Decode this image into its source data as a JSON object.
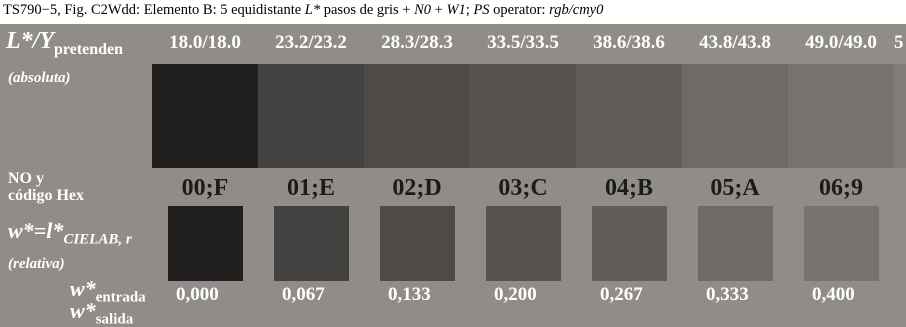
{
  "caption": {
    "prefix": "TS790−5, Fig. C2Wdd: Elemento B: 5 equidistante ",
    "lstar": "L*",
    "mid1": " pasos de gris + ",
    "n0": "N0",
    "plus": " + ",
    "w1": "W1",
    "sep": "; ",
    "ps": "PS",
    "operator": " operator: ",
    "rgb": "rgb/cmy0"
  },
  "labels": {
    "ly_main": "L*/Y",
    "ly_sub": "pretenden",
    "absoluta": "(absoluta)",
    "no_y": "NO y",
    "codigo_hex": "código Hex",
    "w_l_main": "w*=l*",
    "w_l_sub": "CIELAB, r",
    "relativa": "(relativa)",
    "w_entrada_main": "w*",
    "w_entrada_sub": "entrada",
    "w_salida_main": "w*",
    "w_salida_sub": "salida"
  },
  "headers": [
    "18.0/18.0",
    "23.2/23.2",
    "28.3/28.3",
    "33.5/33.5",
    "38.6/38.6",
    "43.8/43.8",
    "49.0/49.0",
    "5"
  ],
  "codes": [
    "00;F",
    "01;E",
    "02;D",
    "03;C",
    "04;B",
    "05;A",
    "06;9"
  ],
  "values": [
    "0,000",
    "0,067",
    "0,133",
    "0,200",
    "0,267",
    "0,333",
    "0,400"
  ],
  "colors": {
    "panel": "#908d89",
    "swatches": [
      "#201e1f",
      "#444241",
      "#4e4a47",
      "#57534f",
      "#615d59",
      "#6e6a66",
      "#77736f",
      "#807c78"
    ]
  }
}
